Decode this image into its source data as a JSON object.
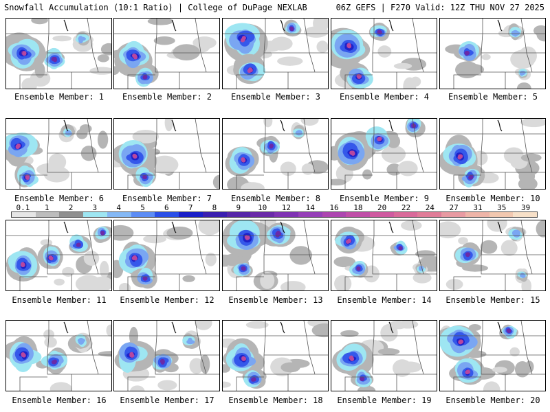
{
  "header": {
    "left": "Snowfall Accumulation (10:1 Ratio) | College of DuPage NEXLAB",
    "right": "06Z GEFS | F270 Valid: 12Z THU NOV 27 2025"
  },
  "members": [
    {
      "label": "Ensemble Member: 1",
      "pattern": "west-band"
    },
    {
      "label": "Ensemble Member: 2",
      "pattern": "west"
    },
    {
      "label": "Ensemble Member: 3",
      "pattern": "heavy-north"
    },
    {
      "label": "Ensemble Member: 4",
      "pattern": "heavy-west"
    },
    {
      "label": "Ensemble Member: 5",
      "pattern": "light"
    },
    {
      "label": "Ensemble Member: 6",
      "pattern": "west-edge"
    },
    {
      "label": "Ensemble Member: 7",
      "pattern": "west"
    },
    {
      "label": "Ensemble Member: 8",
      "pattern": "diagonal"
    },
    {
      "label": "Ensemble Member: 9",
      "pattern": "heavy-diagonal"
    },
    {
      "label": "Ensemble Member: 10",
      "pattern": "west"
    },
    {
      "label": "Ensemble Member: 11",
      "pattern": "long-band"
    },
    {
      "label": "Ensemble Member: 12",
      "pattern": "west"
    },
    {
      "label": "Ensemble Member: 13",
      "pattern": "north-wedge"
    },
    {
      "label": "Ensemble Member: 14",
      "pattern": "scattered"
    },
    {
      "label": "Ensemble Member: 15",
      "pattern": "light"
    },
    {
      "label": "Ensemble Member: 16",
      "pattern": "west-band"
    },
    {
      "label": "Ensemble Member: 17",
      "pattern": "west-band"
    },
    {
      "label": "Ensemble Member: 18",
      "pattern": "west"
    },
    {
      "label": "Ensemble Member: 19",
      "pattern": "west"
    },
    {
      "label": "Ensemble Member: 20",
      "pattern": "heavy-north"
    }
  ],
  "color_scale": {
    "labels": [
      "0.1",
      "1",
      "2",
      "3",
      "4",
      "5",
      "6",
      "7",
      "8",
      "9",
      "10",
      "12",
      "14",
      "16",
      "18",
      "20",
      "22",
      "24",
      "27",
      "31",
      "35",
      "39"
    ],
    "colors": [
      "#e6e6e6",
      "#bdbdbd",
      "#8f8f8f",
      "#9ee6f2",
      "#84b8f5",
      "#5c8cf5",
      "#2a4fe8",
      "#1a1fc8",
      "#3a1fb0",
      "#5526a8",
      "#6a2aa8",
      "#7f33b3",
      "#9640b8",
      "#ad46b0",
      "#c04fa8",
      "#cf5aa0",
      "#d96a9a",
      "#e07c98",
      "#e89aa2",
      "#eeb4a8",
      "#f2c8b0",
      "#f7e0c8"
    ]
  }
}
